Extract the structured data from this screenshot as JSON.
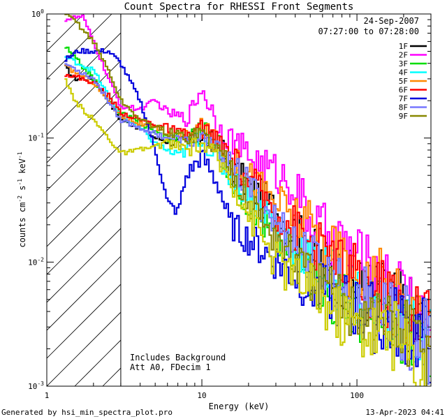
{
  "chart_data": {
    "type": "line",
    "title": "Count Spectra for RHESSI Front Segments",
    "xlabel": "Energy (keV)",
    "ylabel_parts": [
      "counts cm",
      "-2",
      " s",
      "-1",
      " keV",
      "-1"
    ],
    "xscale": "log",
    "yscale": "log",
    "xlim": [
      1,
      300
    ],
    "ylim": [
      0.001,
      1
    ],
    "x_ticks": [
      {
        "v": 1,
        "label": "1"
      },
      {
        "v": 10,
        "label": "10"
      },
      {
        "v": 100,
        "label": "100"
      }
    ],
    "y_ticks": [
      {
        "v": 1,
        "base": "10",
        "exp": "0"
      },
      {
        "v": 0.1,
        "base": "10",
        "exp": "-1"
      },
      {
        "v": 0.01,
        "base": "10",
        "exp": "-2"
      },
      {
        "v": 0.001,
        "base": "10",
        "exp": "-3"
      }
    ],
    "hatched_region": [
      1,
      3
    ],
    "date": "24-Sep-2007",
    "time_range": "07:27:00 to 07:28:00",
    "annotations": [
      "Includes Background",
      "Att A0, FDecim 1"
    ],
    "series": [
      {
        "name": "1F",
        "color": "#000000",
        "points": [
          [
            1.3,
            0.38
          ],
          [
            1.5,
            0.3
          ],
          [
            2,
            0.3
          ],
          [
            2.5,
            0.2
          ],
          [
            3,
            0.14
          ],
          [
            4,
            0.12
          ],
          [
            5,
            0.1
          ],
          [
            7,
            0.09
          ],
          [
            10,
            0.1
          ],
          [
            13,
            0.085
          ],
          [
            15,
            0.06
          ],
          [
            20,
            0.04
          ],
          [
            30,
            0.025
          ],
          [
            50,
            0.012
          ],
          [
            70,
            0.008
          ],
          [
            100,
            0.006
          ],
          [
            150,
            0.005
          ],
          [
            200,
            0.004
          ],
          [
            300,
            0.0025
          ]
        ]
      },
      {
        "name": "2F",
        "color": "#ff00ff",
        "points": [
          [
            1.3,
            0.9
          ],
          [
            1.7,
            0.95
          ],
          [
            2,
            0.6
          ],
          [
            2.5,
            0.3
          ],
          [
            3,
            0.18
          ],
          [
            4,
            0.17
          ],
          [
            5,
            0.2
          ],
          [
            6,
            0.16
          ],
          [
            8,
            0.14
          ],
          [
            10,
            0.25
          ],
          [
            13,
            0.12
          ],
          [
            15,
            0.1
          ],
          [
            20,
            0.07
          ],
          [
            30,
            0.05
          ],
          [
            40,
            0.04
          ],
          [
            50,
            0.02
          ],
          [
            70,
            0.015
          ],
          [
            100,
            0.01
          ],
          [
            150,
            0.006
          ],
          [
            200,
            0.005
          ],
          [
            300,
            0.003
          ]
        ]
      },
      {
        "name": "3F",
        "color": "#00dd00",
        "points": [
          [
            1.3,
            0.55
          ],
          [
            2,
            0.3
          ],
          [
            2.5,
            0.2
          ],
          [
            3,
            0.16
          ],
          [
            4,
            0.13
          ],
          [
            6,
            0.1
          ],
          [
            8,
            0.1
          ],
          [
            10,
            0.12
          ],
          [
            13,
            0.08
          ],
          [
            15,
            0.05
          ],
          [
            20,
            0.03
          ],
          [
            30,
            0.015
          ],
          [
            50,
            0.008
          ],
          [
            70,
            0.005
          ],
          [
            100,
            0.004
          ],
          [
            150,
            0.0035
          ],
          [
            200,
            0.003
          ],
          [
            300,
            0.002
          ]
        ]
      },
      {
        "name": "4F",
        "color": "#00ffff",
        "points": [
          [
            1.3,
            0.45
          ],
          [
            2,
            0.35
          ],
          [
            2.5,
            0.22
          ],
          [
            3,
            0.15
          ],
          [
            4,
            0.12
          ],
          [
            5,
            0.09
          ],
          [
            7,
            0.07
          ],
          [
            10,
            0.1
          ],
          [
            15,
            0.05
          ],
          [
            20,
            0.035
          ],
          [
            30,
            0.02
          ],
          [
            50,
            0.01
          ],
          [
            70,
            0.007
          ],
          [
            100,
            0.005
          ],
          [
            150,
            0.004
          ],
          [
            200,
            0.003
          ],
          [
            300,
            0.002
          ]
        ]
      },
      {
        "name": "5F",
        "color": "#ff8800",
        "points": [
          [
            1.3,
            0.38
          ],
          [
            2,
            0.28
          ],
          [
            2.5,
            0.2
          ],
          [
            3,
            0.15
          ],
          [
            4,
            0.13
          ],
          [
            6,
            0.11
          ],
          [
            8,
            0.1
          ],
          [
            10,
            0.12
          ],
          [
            15,
            0.07
          ],
          [
            20,
            0.05
          ],
          [
            30,
            0.03
          ],
          [
            50,
            0.018
          ],
          [
            70,
            0.012
          ],
          [
            100,
            0.008
          ],
          [
            150,
            0.006
          ],
          [
            200,
            0.004
          ],
          [
            300,
            0.003
          ]
        ]
      },
      {
        "name": "6F",
        "color": "#ff0000",
        "points": [
          [
            1.3,
            0.33
          ],
          [
            2,
            0.28
          ],
          [
            2.5,
            0.22
          ],
          [
            3,
            0.16
          ],
          [
            4,
            0.14
          ],
          [
            6,
            0.12
          ],
          [
            8,
            0.1
          ],
          [
            10,
            0.12
          ],
          [
            15,
            0.07
          ],
          [
            20,
            0.045
          ],
          [
            30,
            0.025
          ],
          [
            50,
            0.014
          ],
          [
            70,
            0.01
          ],
          [
            100,
            0.007
          ],
          [
            150,
            0.005
          ],
          [
            200,
            0.004
          ],
          [
            300,
            0.003
          ]
        ]
      },
      {
        "name": "7F",
        "color": "#0000dd",
        "points": [
          [
            1.3,
            0.42
          ],
          [
            1.6,
            0.5
          ],
          [
            2,
            0.5
          ],
          [
            2.5,
            0.5
          ],
          [
            3,
            0.4
          ],
          [
            4,
            0.2
          ],
          [
            5,
            0.08
          ],
          [
            6,
            0.03
          ],
          [
            7,
            0.025
          ],
          [
            8,
            0.05
          ],
          [
            10,
            0.07
          ],
          [
            13,
            0.04
          ],
          [
            15,
            0.02
          ],
          [
            20,
            0.015
          ],
          [
            30,
            0.01
          ],
          [
            50,
            0.006
          ],
          [
            70,
            0.005
          ],
          [
            100,
            0.004
          ],
          [
            150,
            0.003
          ],
          [
            200,
            0.003
          ],
          [
            300,
            0.002
          ]
        ]
      },
      {
        "name": "8F",
        "color": "#7777ff",
        "points": [
          [
            1.3,
            0.4
          ],
          [
            2,
            0.3
          ],
          [
            2.5,
            0.2
          ],
          [
            3,
            0.14
          ],
          [
            4,
            0.12
          ],
          [
            6,
            0.1
          ],
          [
            8,
            0.09
          ],
          [
            10,
            0.1
          ],
          [
            15,
            0.06
          ],
          [
            20,
            0.04
          ],
          [
            30,
            0.02
          ],
          [
            50,
            0.01
          ],
          [
            70,
            0.007
          ],
          [
            100,
            0.005
          ],
          [
            150,
            0.0035
          ],
          [
            200,
            0.003
          ],
          [
            300,
            0.002
          ]
        ]
      },
      {
        "name": "9F",
        "color": "#888800",
        "points": [
          [
            1.3,
            0.98
          ],
          [
            1.5,
            0.9
          ],
          [
            2,
            0.6
          ],
          [
            2.5,
            0.35
          ],
          [
            3,
            0.2
          ],
          [
            4,
            0.14
          ],
          [
            6,
            0.11
          ],
          [
            8,
            0.1
          ],
          [
            10,
            0.11
          ],
          [
            15,
            0.06
          ],
          [
            20,
            0.03
          ],
          [
            30,
            0.015
          ],
          [
            50,
            0.007
          ],
          [
            70,
            0.005
          ],
          [
            100,
            0.004
          ],
          [
            150,
            0.003
          ],
          [
            200,
            0.0025
          ],
          [
            300,
            0.0018
          ]
        ]
      },
      {
        "name": "",
        "color": "#cccc00",
        "points": [
          [
            1.3,
            0.3
          ],
          [
            1.5,
            0.2
          ],
          [
            2,
            0.14
          ],
          [
            2.5,
            0.1
          ],
          [
            3,
            0.075
          ],
          [
            4,
            0.08
          ],
          [
            6,
            0.09
          ],
          [
            8,
            0.08
          ],
          [
            10,
            0.09
          ],
          [
            15,
            0.05
          ],
          [
            20,
            0.025
          ],
          [
            30,
            0.01
          ],
          [
            50,
            0.006
          ],
          [
            70,
            0.004
          ],
          [
            100,
            0.003
          ],
          [
            150,
            0.0025
          ],
          [
            200,
            0.002
          ],
          [
            300,
            0.001
          ]
        ]
      }
    ]
  },
  "footer": {
    "left": "Generated by hsi_min_spectra_plot.pro",
    "right": "13-Apr-2023 04:41"
  }
}
